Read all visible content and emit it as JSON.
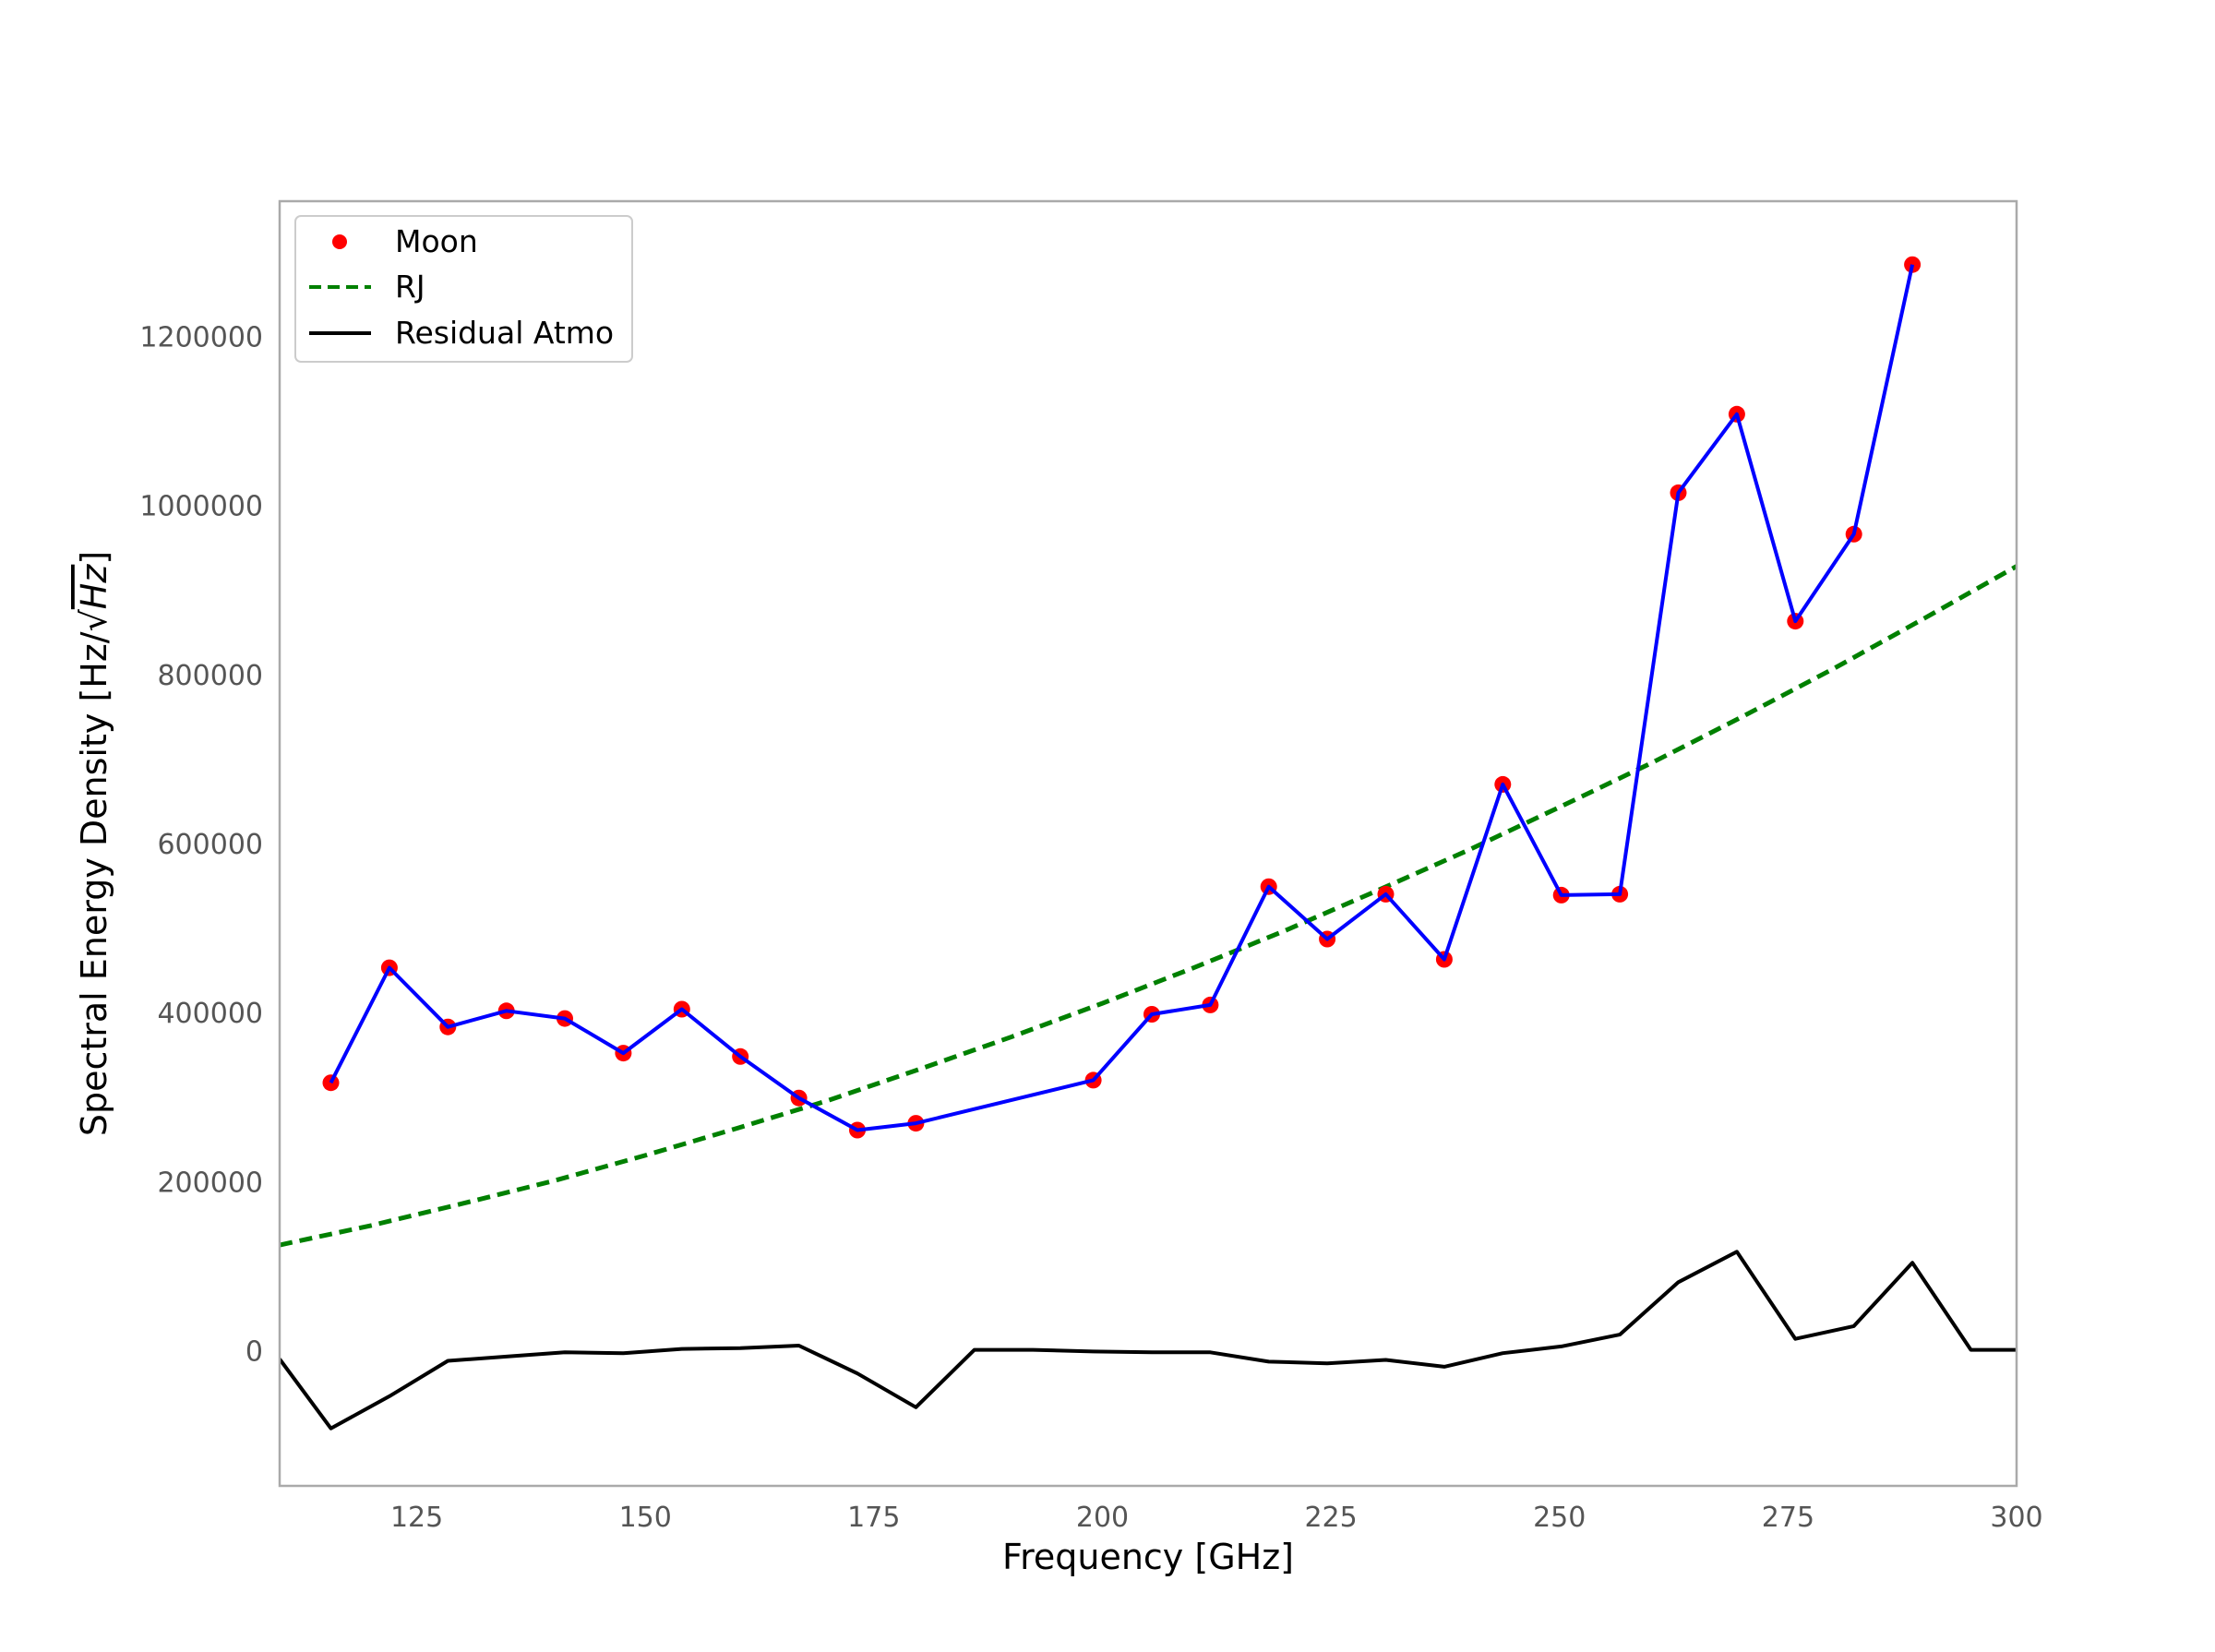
{
  "chart_data": {
    "type": "line",
    "title": "",
    "xlabel": "Frequency [GHz]",
    "ylabel_prefix": "Spectral Energy Density [Hz/",
    "ylabel_sqrt": "Hz",
    "ylabel_suffix": "]",
    "xlim": [
      110,
      300
    ],
    "ylim": [
      -160000,
      1360000
    ],
    "xticks": [
      125,
      150,
      175,
      200,
      225,
      250,
      275,
      300
    ],
    "yticks": [
      0,
      200000,
      400000,
      600000,
      800000,
      1000000,
      1200000
    ],
    "grid": false,
    "legend_position": "upper-left",
    "legend": [
      {
        "label": "Moon",
        "marker": "dot",
        "color": "#ff0000"
      },
      {
        "label": "RJ",
        "marker": "dashed-line",
        "color": "#008000"
      },
      {
        "label": "Residual Atmo",
        "marker": "line",
        "color": "#000000"
      }
    ],
    "series": [
      {
        "name": "Moon",
        "kind": "scatter-with-line",
        "marker_color": "#ff0000",
        "line_color": "#0000ff",
        "x": [
          115.6,
          122.0,
          128.4,
          134.8,
          141.2,
          147.6,
          154.0,
          160.4,
          166.8,
          173.2,
          179.6,
          199.0,
          205.4,
          211.8,
          218.2,
          224.6,
          231.0,
          237.4,
          243.8,
          250.2,
          256.6,
          263.0,
          269.4,
          275.8,
          282.2,
          288.6
        ],
        "y": [
          317000,
          453000,
          383000,
          402000,
          393000,
          352000,
          404000,
          348000,
          299000,
          261000,
          269000,
          320000,
          398000,
          409000,
          549000,
          487000,
          540000,
          463000,
          670000,
          539000,
          540000,
          1015000,
          1108000,
          863000,
          966000,
          1285000
        ]
      },
      {
        "name": "RJ",
        "kind": "dashed-line",
        "color": "#008000",
        "x": [
          110,
          120,
          130,
          140,
          150,
          160,
          170,
          180,
          190,
          200,
          210,
          220,
          230,
          240,
          250,
          260,
          270,
          280,
          290,
          300
        ],
        "y": [
          125000,
          148000,
          174000,
          201000,
          231000,
          263000,
          296000,
          333000,
          371000,
          411000,
          453000,
          497000,
          544000,
          592000,
          643000,
          695000,
          750000,
          807000,
          867000,
          928000
        ]
      },
      {
        "name": "Residual Atmo",
        "kind": "line",
        "color": "#000000",
        "x": [
          110,
          115.6,
          122.0,
          128.4,
          134.8,
          141.2,
          147.6,
          154.0,
          160.4,
          166.8,
          173.2,
          179.6,
          186.0,
          192.4,
          199.0,
          205.4,
          211.8,
          218.2,
          224.6,
          231.0,
          237.4,
          243.8,
          250.2,
          256.6,
          263.0,
          269.4,
          275.8,
          282.2,
          288.6,
          295.0,
          300
        ],
        "y": [
          -10000,
          -92000,
          -54000,
          -12000,
          -7000,
          -2000,
          -3000,
          2000,
          3000,
          6000,
          -27000,
          -67000,
          1000,
          1000,
          -1000,
          -2000,
          -2000,
          -13000,
          -15000,
          -11000,
          -19000,
          -3000,
          5000,
          19000,
          81000,
          117000,
          14000,
          29000,
          104000,
          1000,
          1000
        ]
      }
    ]
  }
}
